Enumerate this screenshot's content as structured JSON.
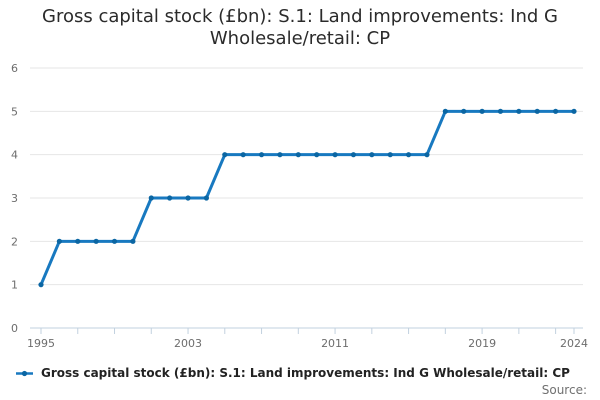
{
  "title_lines": [
    "Gross capital stock (£bn): S.1: Land improvements: Ind G",
    "Wholesale/retail: CP"
  ],
  "legend": {
    "label": "Gross capital stock (£bn): S.1: Land improvements: Ind G Wholesale/retail: CP"
  },
  "source_label": "Source:",
  "colors": {
    "line": "#1879c0",
    "marker": "#0b66a3",
    "grid": "#e6e6e6",
    "axis": "#c2d1df",
    "tick_label": "#6d6d6d",
    "title": "#2b2b2b",
    "source": "#707070"
  },
  "chart_data": {
    "type": "line",
    "title": "Gross capital stock (£bn): S.1: Land improvements: Ind G Wholesale/retail: CP",
    "xlabel": "",
    "ylabel": "",
    "x": [
      1995,
      1996,
      1997,
      1998,
      1999,
      2000,
      2001,
      2002,
      2003,
      2004,
      2005,
      2006,
      2007,
      2008,
      2009,
      2010,
      2011,
      2012,
      2013,
      2014,
      2015,
      2016,
      2017,
      2018,
      2019,
      2020,
      2021,
      2022,
      2023,
      2024
    ],
    "values": [
      1,
      2,
      2,
      2,
      2,
      2,
      3,
      3,
      3,
      3,
      4,
      4,
      4,
      4,
      4,
      4,
      4,
      4,
      4,
      4,
      4,
      4,
      5,
      5,
      5,
      5,
      5,
      5,
      5,
      5
    ],
    "series_name": "Gross capital stock (£bn): S.1: Land improvements: Ind G Wholesale/retail: CP",
    "ylim": [
      0,
      6
    ],
    "yticks": [
      0,
      1,
      2,
      3,
      4,
      5,
      6
    ],
    "xtick_labels": [
      1995,
      2003,
      2011,
      2019,
      2024
    ],
    "xtick_step": 2,
    "grid": true,
    "legend_position": "bottom-left"
  }
}
